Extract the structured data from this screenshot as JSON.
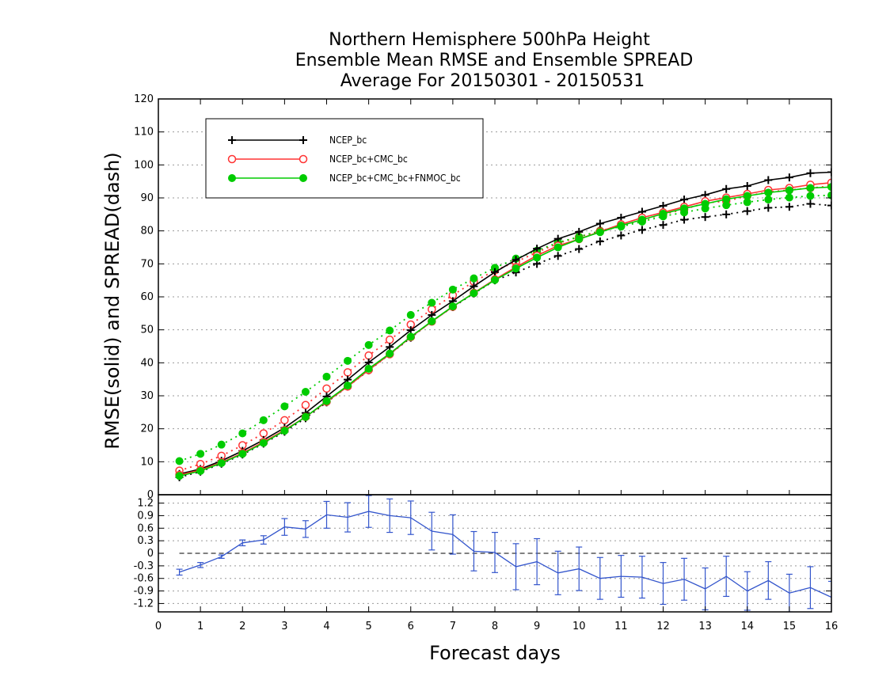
{
  "chart_data": {
    "title": [
      "Northern Hemisphere 500hPa Height",
      "Ensemble Mean RMSE and Ensemble SPREAD",
      "Average For 20150301 - 20150531"
    ],
    "xlabel": "Forecast days",
    "ylabel": "RMSE(solid) and SPREAD(dash)",
    "xlim": [
      0,
      16
    ],
    "x_ticks": [
      0,
      1,
      2,
      3,
      4,
      5,
      6,
      7,
      8,
      9,
      10,
      11,
      12,
      13,
      14,
      15,
      16
    ],
    "x": [
      0.5,
      1,
      1.5,
      2,
      2.5,
      3,
      3.5,
      4,
      4.5,
      5,
      5.5,
      6,
      6.5,
      7,
      7.5,
      8,
      8.5,
      9,
      9.5,
      10,
      10.5,
      11,
      11.5,
      12,
      12.5,
      13,
      13.5,
      14,
      14.5,
      15,
      15.5,
      16
    ],
    "top_panel": {
      "type": "line",
      "ylim": [
        0,
        120
      ],
      "y_ticks": [
        0,
        10,
        20,
        30,
        40,
        50,
        60,
        70,
        80,
        90,
        100,
        110,
        120
      ],
      "grid": true,
      "legend_position": "top-left",
      "series": [
        {
          "name": "NCEP_bc",
          "style": "solid",
          "marker": "plus",
          "color": "#000000",
          "values": [
            6.3,
            7.8,
            10.3,
            13.3,
            16.6,
            20.3,
            24.8,
            29.8,
            34.9,
            40.1,
            44.8,
            49.9,
            54.5,
            58.7,
            63.2,
            67.5,
            71.2,
            74.6,
            77.6,
            79.7,
            82.2,
            84.0,
            85.8,
            87.6,
            89.5,
            90.9,
            92.7,
            93.6,
            95.4,
            96.2,
            97.5,
            97.8
          ]
        },
        {
          "name": "NCEP_bc+CMC_bc",
          "style": "solid",
          "marker": "circle",
          "color": "#ff3333",
          "values": [
            6.0,
            7.5,
            9.8,
            12.6,
            16.0,
            19.6,
            23.6,
            28.2,
            32.8,
            37.8,
            42.6,
            47.8,
            52.5,
            57.0,
            61.2,
            65.3,
            69.0,
            72.5,
            75.5,
            77.5,
            79.8,
            82.0,
            84.0,
            85.6,
            87.3,
            89.0,
            90.1,
            91.2,
            92.4,
            93.0,
            94.0,
            94.6
          ]
        },
        {
          "name": "NCEP_bc+CMC_bc+FNMOC_bc",
          "style": "solid",
          "marker": "dot",
          "color": "#00cc00",
          "values": [
            5.7,
            7.2,
            9.6,
            12.4,
            15.7,
            19.4,
            23.6,
            28.4,
            33.1,
            38.2,
            42.8,
            47.9,
            52.6,
            57.1,
            61.1,
            65.1,
            68.6,
            71.9,
            75.0,
            77.5,
            79.6,
            81.6,
            83.4,
            85.2,
            86.8,
            88.2,
            89.6,
            90.6,
            91.6,
            92.3,
            93.0,
            93.3
          ]
        },
        {
          "name": "",
          "style": "dash",
          "marker": "plus",
          "color": "#000000",
          "values": [
            5.3,
            7.0,
            9.4,
            12.2,
            15.5,
            19.1,
            23.2,
            28.0,
            32.8,
            37.7,
            42.6,
            47.6,
            52.6,
            56.9,
            61.0,
            65.0,
            67.4,
            70.0,
            72.4,
            74.5,
            76.8,
            78.6,
            80.3,
            81.8,
            83.4,
            84.2,
            85.0,
            86.0,
            87.0,
            87.3,
            88.2,
            87.7
          ]
        },
        {
          "name": "",
          "style": "dash",
          "marker": "circle",
          "color": "#ff3333",
          "values": [
            7.3,
            9.3,
            11.8,
            15.0,
            18.6,
            22.6,
            27.2,
            32.2,
            37.1,
            42.2,
            47.0,
            51.6,
            56.2,
            60.5,
            64.6,
            68.0,
            70.6,
            73.5,
            76.2,
            78.2,
            80.0,
            81.6,
            83.3,
            85.0,
            86.5,
            88.5,
            89.0,
            90.6,
            91.8,
            92.4,
            93.0,
            93.6
          ]
        },
        {
          "name": "",
          "style": "dash",
          "marker": "dot",
          "color": "#00cc00",
          "values": [
            10.2,
            12.4,
            15.2,
            18.6,
            22.6,
            26.8,
            31.2,
            35.8,
            40.6,
            45.4,
            49.8,
            54.5,
            58.2,
            62.2,
            65.6,
            68.8,
            71.6,
            74.0,
            76.5,
            78.2,
            80.0,
            81.3,
            82.8,
            84.4,
            85.6,
            86.8,
            87.8,
            88.7,
            89.5,
            90.1,
            90.6,
            90.8
          ]
        }
      ]
    },
    "bottom_panel": {
      "type": "line",
      "ylim": [
        -1.4,
        1.4
      ],
      "y_ticks": [
        "1.2",
        "0.9",
        "0.6",
        "0.3",
        "0",
        "-0.3",
        "-0.6",
        "-0.9",
        "-1.2"
      ],
      "zero_line": true,
      "series": [
        {
          "name": "",
          "color": "#3355cc",
          "error_bars": true,
          "values": [
            -0.45,
            -0.28,
            -0.08,
            0.25,
            0.32,
            0.63,
            0.58,
            0.92,
            0.86,
            1.0,
            0.9,
            0.85,
            0.53,
            0.45,
            0.05,
            0.02,
            -0.32,
            -0.2,
            -0.47,
            -0.37,
            -0.6,
            -0.55,
            -0.57,
            -0.72,
            -0.62,
            -0.85,
            -0.55,
            -0.9,
            -0.65,
            -0.95,
            -0.82,
            -1.05
          ],
          "errors": [
            0.07,
            0.06,
            0.04,
            0.07,
            0.1,
            0.2,
            0.2,
            0.32,
            0.35,
            0.38,
            0.4,
            0.4,
            0.45,
            0.47,
            0.47,
            0.48,
            0.55,
            0.55,
            0.52,
            0.52,
            0.5,
            0.5,
            0.5,
            0.5,
            0.5,
            0.5,
            0.48,
            0.46,
            0.45,
            0.45,
            0.5,
            0.38
          ]
        }
      ]
    }
  }
}
